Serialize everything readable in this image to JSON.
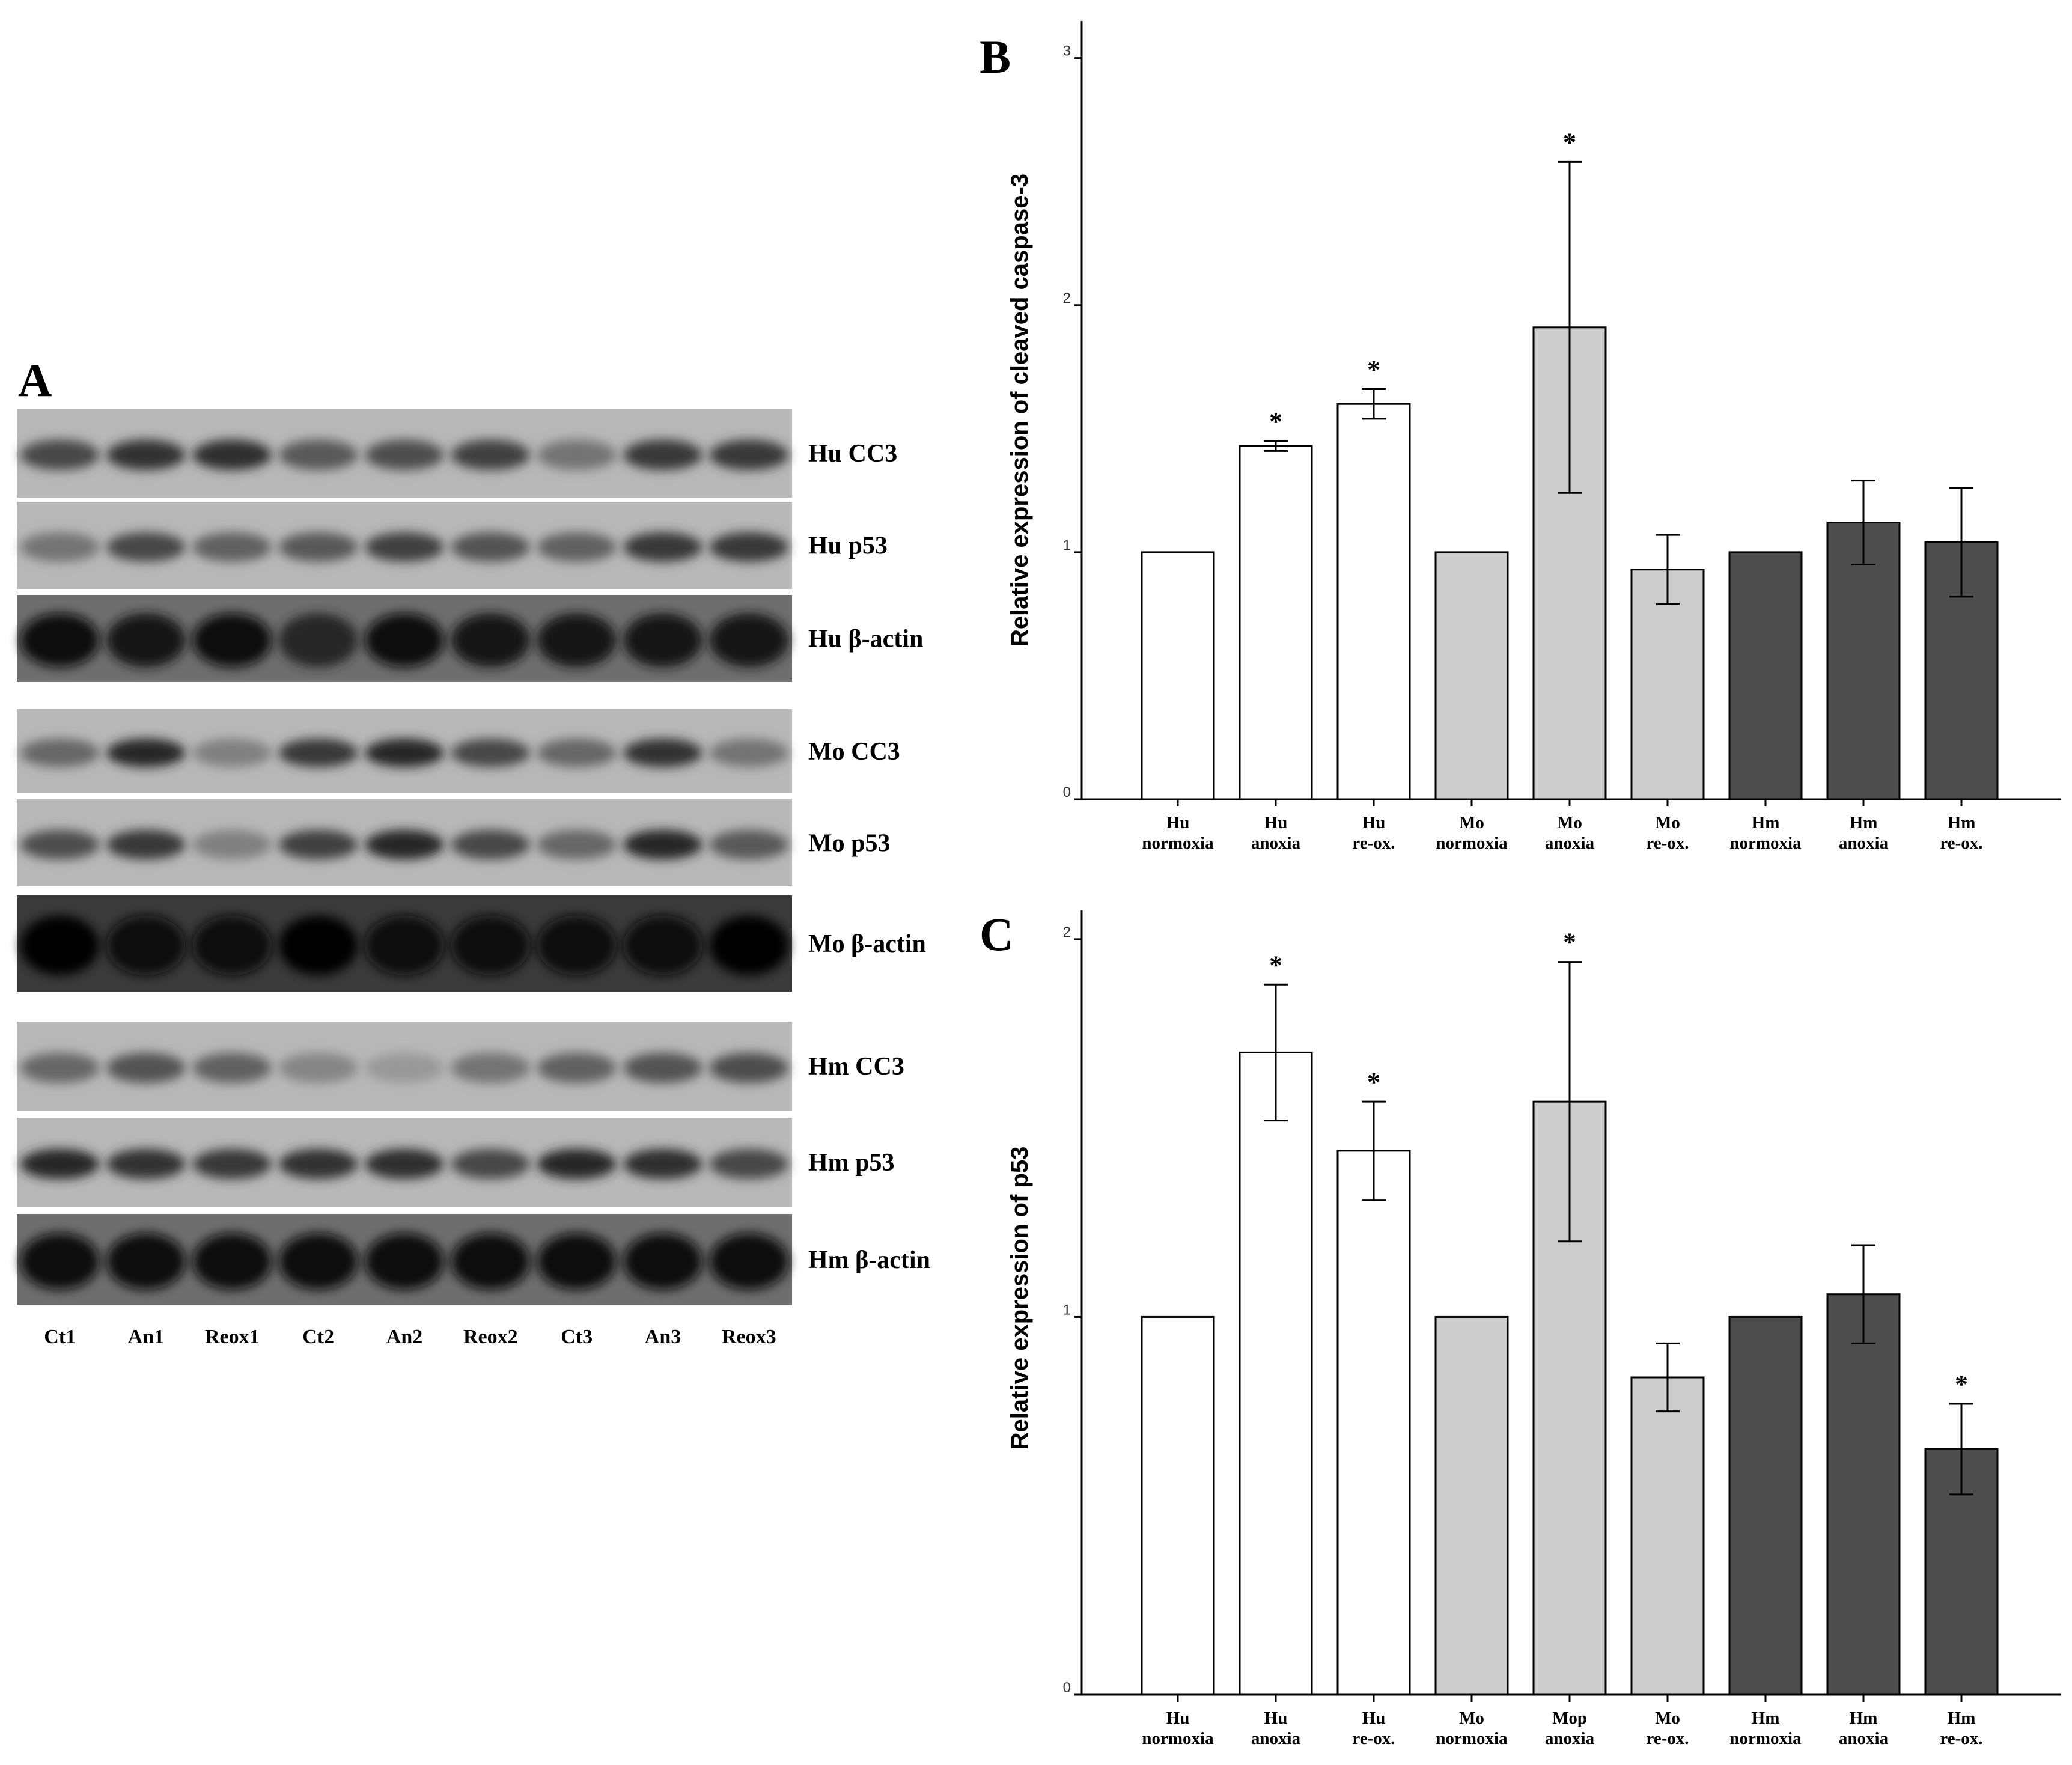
{
  "panels": {
    "a": "A",
    "b": "B",
    "c": "C"
  },
  "blot": {
    "lanes": [
      "Ct1",
      "An1",
      "Reox1",
      "Ct2",
      "An2",
      "Reox2",
      "Ct3",
      "An3",
      "Reox3"
    ],
    "rows": [
      {
        "label": "Hu CC3",
        "intensity": [
          0.72,
          0.8,
          0.82,
          0.65,
          0.7,
          0.75,
          0.55,
          0.78,
          0.78
        ]
      },
      {
        "label": "Hu p53",
        "intensity": [
          0.55,
          0.72,
          0.62,
          0.65,
          0.75,
          0.68,
          0.62,
          0.78,
          0.78
        ]
      },
      {
        "label": "Hu β-actin",
        "intensity": [
          0.95,
          0.92,
          0.96,
          0.85,
          0.95,
          0.92,
          0.92,
          0.92,
          0.92
        ]
      },
      {
        "label": "Mo CC3",
        "intensity": [
          0.6,
          0.85,
          0.5,
          0.78,
          0.85,
          0.72,
          0.6,
          0.8,
          0.55
        ]
      },
      {
        "label": "Mo p53",
        "intensity": [
          0.7,
          0.78,
          0.5,
          0.75,
          0.85,
          0.72,
          0.6,
          0.85,
          0.65
        ]
      },
      {
        "label": "Mo β-actin",
        "intensity": [
          0.98,
          0.97,
          0.97,
          0.98,
          0.96,
          0.96,
          0.95,
          0.97,
          0.98
        ]
      },
      {
        "label": "Hm CC3",
        "intensity": [
          0.6,
          0.68,
          0.62,
          0.48,
          0.4,
          0.55,
          0.62,
          0.68,
          0.7
        ]
      },
      {
        "label": "Hm p53",
        "intensity": [
          0.85,
          0.8,
          0.78,
          0.8,
          0.82,
          0.72,
          0.85,
          0.82,
          0.72
        ]
      },
      {
        "label": "Hm β-actin",
        "intensity": [
          0.97,
          0.96,
          0.97,
          0.95,
          0.97,
          0.96,
          0.95,
          0.96,
          0.97
        ]
      }
    ]
  },
  "chart_data": [
    {
      "type": "bar",
      "ylabel": "Relative expression of cleaved caspase-3",
      "ylim": [
        0,
        3.15
      ],
      "yticks": [
        "0",
        "1",
        "2",
        "3"
      ],
      "categories": [
        [
          "Hu",
          "normoxia"
        ],
        [
          "Hu",
          "anoxia"
        ],
        [
          "Hu",
          "re-ox."
        ],
        [
          "Mo",
          "normoxia"
        ],
        [
          "Mo",
          "anoxia"
        ],
        [
          "Mo",
          "re-ox."
        ],
        [
          "Hm",
          "normoxia"
        ],
        [
          "Hm",
          "anoxia"
        ],
        [
          "Hm",
          "re-ox."
        ]
      ],
      "values": [
        1.0,
        1.43,
        1.6,
        1.0,
        1.91,
        0.93,
        1.0,
        1.12,
        1.04
      ],
      "errors": [
        0,
        0.02,
        0.06,
        0,
        0.67,
        0.14,
        0,
        0.17,
        0.22
      ],
      "significant": [
        false,
        true,
        true,
        false,
        true,
        false,
        false,
        false,
        false
      ],
      "star_symbol": "*",
      "colors": [
        "#ffffff",
        "#ffffff",
        "#ffffff",
        "#cccccc",
        "#cccccc",
        "#cccccc",
        "#4d4d4d",
        "#4d4d4d",
        "#4d4d4d"
      ]
    },
    {
      "type": "bar",
      "ylabel": "Relative expression of p53",
      "ylim": [
        0,
        2.1
      ],
      "yticks": [
        "0",
        "1",
        "2"
      ],
      "categories": [
        [
          "Hu",
          "normoxia"
        ],
        [
          "Hu",
          "anoxia"
        ],
        [
          "Hu",
          "re-ox."
        ],
        [
          "Mo",
          "normoxia"
        ],
        [
          "Mop",
          "anoxia"
        ],
        [
          "Mo",
          "re-ox."
        ],
        [
          "Hm",
          "normoxia"
        ],
        [
          "Hm",
          "anoxia"
        ],
        [
          "Hm",
          "re-ox."
        ]
      ],
      "values": [
        1.0,
        1.7,
        1.44,
        1.0,
        1.57,
        0.84,
        1.0,
        1.06,
        0.65
      ],
      "errors": [
        0,
        0.18,
        0.13,
        0,
        0.37,
        0.09,
        0,
        0.13,
        0.12
      ],
      "significant": [
        false,
        true,
        true,
        false,
        true,
        false,
        false,
        false,
        true
      ],
      "star_symbol": "*",
      "colors": [
        "#ffffff",
        "#ffffff",
        "#ffffff",
        "#cccccc",
        "#cccccc",
        "#cccccc",
        "#4d4d4d",
        "#4d4d4d",
        "#4d4d4d"
      ]
    }
  ]
}
